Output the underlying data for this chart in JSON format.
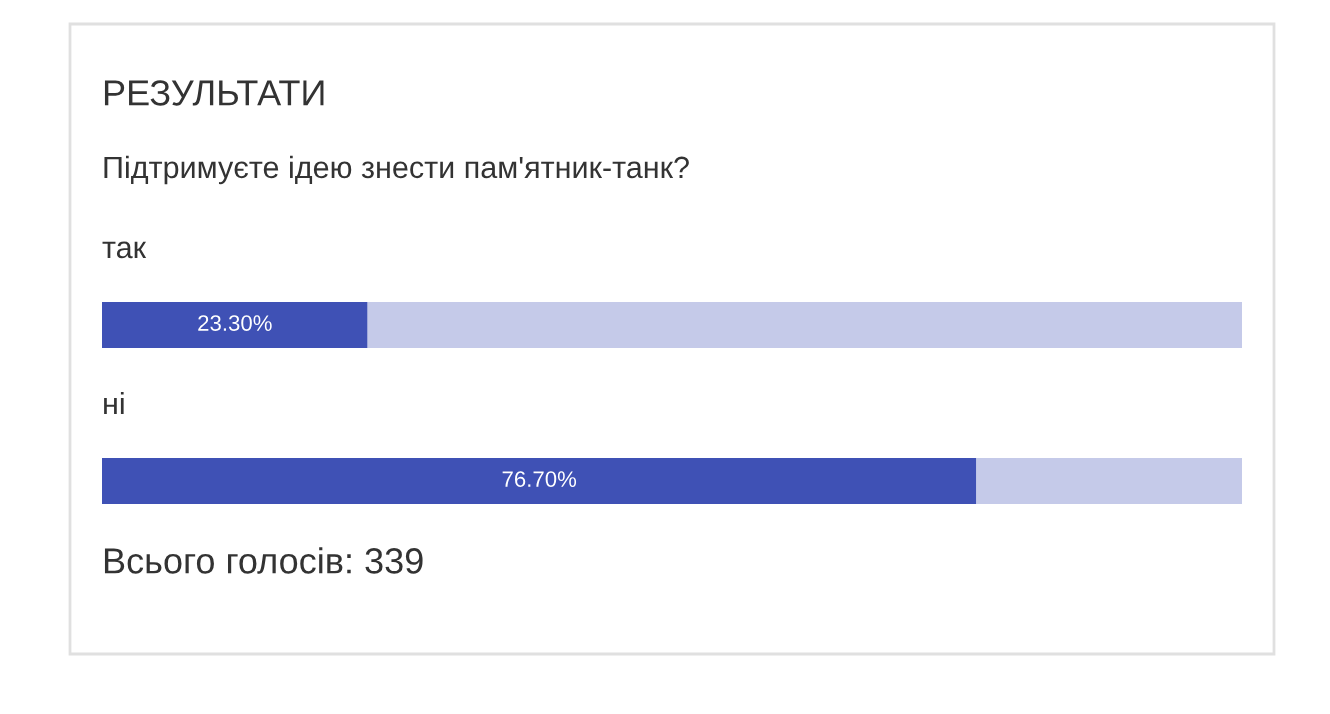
{
  "chart_data": {
    "type": "bar",
    "orientation": "horizontal",
    "stacked": true,
    "title": "РЕЗУЛЬТАТИ",
    "subtitle": "Підтримуєте ідею знести пам'ятник-танк?",
    "categories": [
      "так",
      "ні"
    ],
    "series": [
      {
        "color": "#3f51b5",
        "values": [
          23.3,
          76.7
        ],
        "value_labels": [
          "23.30%",
          "76.70%"
        ]
      },
      {
        "color": "#c5cae9",
        "values": [
          76.7,
          23.3
        ]
      }
    ],
    "xlim": [
      0,
      100
    ],
    "legend": false,
    "annotations": [
      "Всього голосів: 339"
    ]
  }
}
